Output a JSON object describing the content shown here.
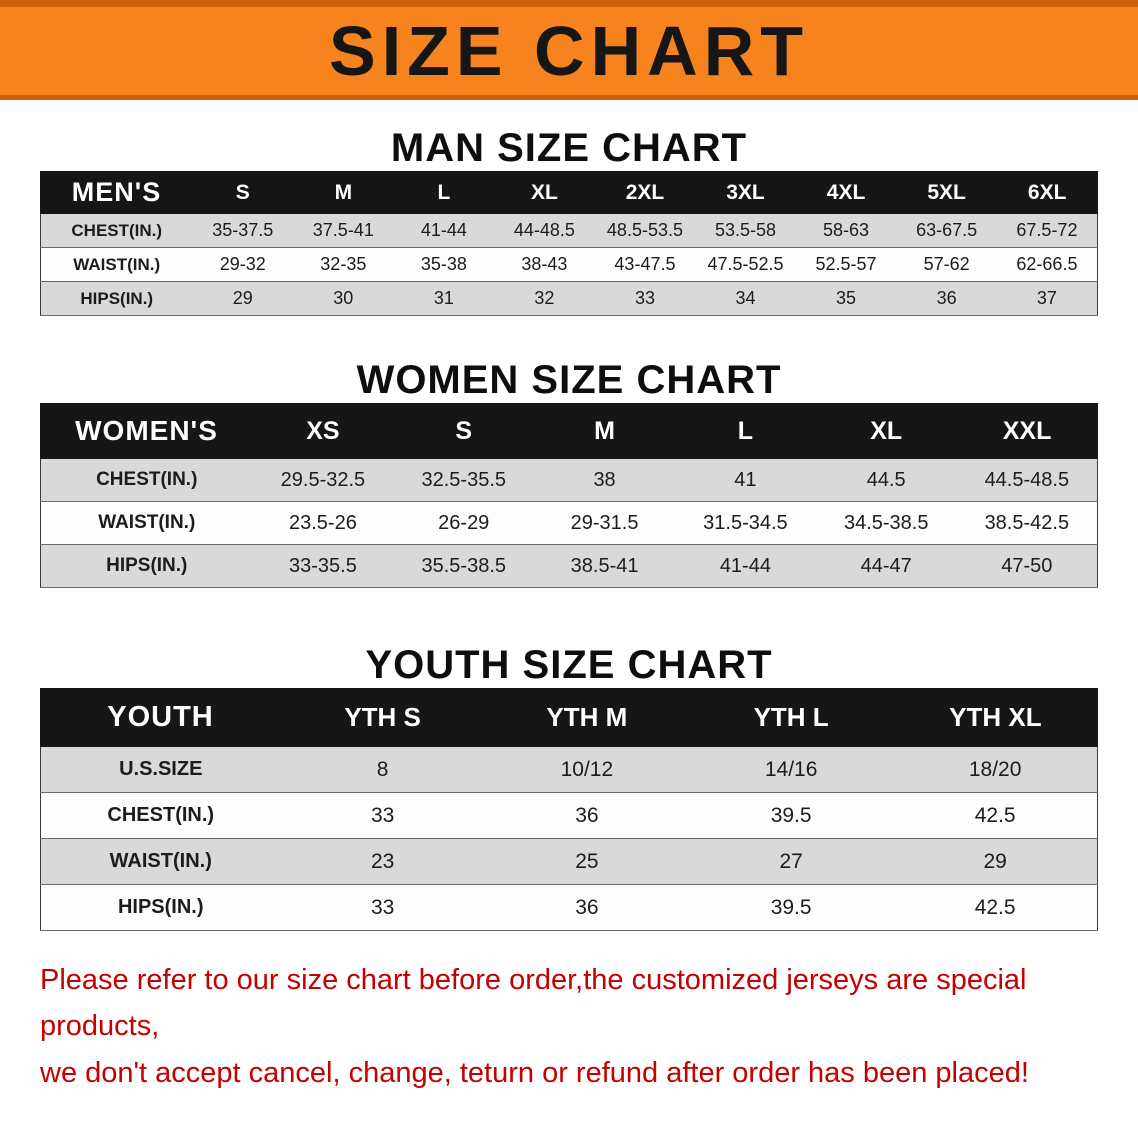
{
  "banner": {
    "title": "SIZE CHART",
    "bg_color": "#f6831d",
    "text_color": "#161616"
  },
  "sections": [
    {
      "id": "men",
      "heading": "MAN SIZE CHART",
      "table": {
        "header": [
          "MEN'S",
          "S",
          "M",
          "L",
          "XL",
          "2XL",
          "3XL",
          "4XL",
          "5XL",
          "6XL"
        ],
        "rows": [
          [
            "CHEST(IN.)",
            "35-37.5",
            "37.5-41",
            "41-44",
            "44-48.5",
            "48.5-53.5",
            "53.5-58",
            "58-63",
            "63-67.5",
            "67.5-72"
          ],
          [
            "WAIST(IN.)",
            "29-32",
            "32-35",
            "35-38",
            "38-43",
            "43-47.5",
            "47.5-52.5",
            "52.5-57",
            "57-62",
            "62-66.5"
          ],
          [
            "HIPS(IN.)",
            "29",
            "30",
            "31",
            "32",
            "33",
            "34",
            "35",
            "36",
            "37"
          ]
        ]
      }
    },
    {
      "id": "women",
      "heading": "WOMEN SIZE CHART",
      "table": {
        "header": [
          "WOMEN'S",
          "XS",
          "S",
          "M",
          "L",
          "XL",
          "XXL"
        ],
        "rows": [
          [
            "CHEST(IN.)",
            "29.5-32.5",
            "32.5-35.5",
            "38",
            "41",
            "44.5",
            "44.5-48.5"
          ],
          [
            "WAIST(IN.)",
            "23.5-26",
            "26-29",
            "29-31.5",
            "31.5-34.5",
            "34.5-38.5",
            "38.5-42.5"
          ],
          [
            "HIPS(IN.)",
            "33-35.5",
            "35.5-38.5",
            "38.5-41",
            "41-44",
            "44-47",
            "47-50"
          ]
        ]
      }
    },
    {
      "id": "youth",
      "heading": "YOUTH SIZE CHART",
      "table": {
        "header": [
          "YOUTH",
          "YTH S",
          "YTH M",
          "YTH L",
          "YTH XL"
        ],
        "rows": [
          [
            "U.S.SIZE",
            "8",
            "10/12",
            "14/16",
            "18/20"
          ],
          [
            "CHEST(IN.)",
            "33",
            "36",
            "39.5",
            "42.5"
          ],
          [
            "WAIST(IN.)",
            "23",
            "25",
            "27",
            "29"
          ],
          [
            "HIPS(IN.)",
            "33",
            "36",
            "39.5",
            "42.5"
          ]
        ]
      }
    }
  ],
  "disclaimer": {
    "color": "#c40000",
    "lines": [
      "Please refer to our size chart before order,the customized jerseys are special products,",
      "we don't accept cancel, change, teturn or refund after order has been placed!"
    ]
  }
}
